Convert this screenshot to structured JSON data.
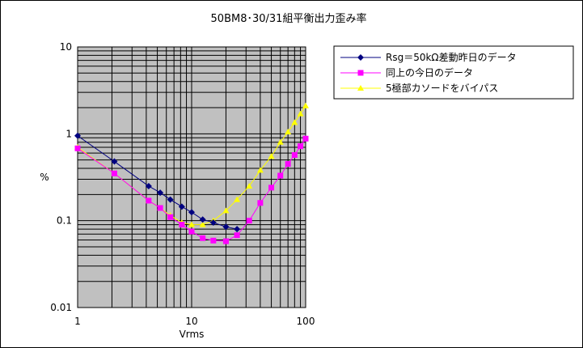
{
  "chart_data": {
    "type": "line",
    "title": "50BM8･30/31組平衡出力歪み率",
    "xlabel": "Vrms",
    "ylabel": "%",
    "x_scale": "log",
    "y_scale": "log",
    "xlim": [
      1,
      100
    ],
    "ylim": [
      0.01,
      10
    ],
    "x_ticks": [
      "1",
      "10",
      "100"
    ],
    "y_ticks": [
      "10",
      "1",
      "0.1",
      "0.01"
    ],
    "grid": true,
    "legend_position": "top-right outside plot",
    "plot_background": "#c0c0c0",
    "series": [
      {
        "name": "Rsg＝50kΩ差動昨日のデータ",
        "color": "#000080",
        "marker": "diamond",
        "x": [
          1,
          2.1,
          4.2,
          5.3,
          6.5,
          8.2,
          10,
          12.5,
          15.5,
          20,
          25
        ],
        "y": [
          0.95,
          0.48,
          0.25,
          0.21,
          0.175,
          0.145,
          0.125,
          0.103,
          0.095,
          0.085,
          0.08
        ]
      },
      {
        "name": "同上の今日のデータ",
        "color": "#ff00ff",
        "marker": "square",
        "x": [
          1,
          2.1,
          4.2,
          5.3,
          6.5,
          8.2,
          10,
          12.5,
          15.5,
          20,
          25,
          32,
          40,
          50,
          60,
          70,
          80,
          90,
          100
        ],
        "y": [
          0.68,
          0.35,
          0.17,
          0.14,
          0.11,
          0.09,
          0.075,
          0.063,
          0.059,
          0.058,
          0.068,
          0.1,
          0.16,
          0.24,
          0.33,
          0.45,
          0.57,
          0.72,
          0.88
        ]
      },
      {
        "name": "5極部カソードをバイパス",
        "color": "#ffff00",
        "marker": "triangle",
        "x": [
          1,
          2.1,
          4.2,
          5.3,
          6.5,
          8.2,
          10,
          12.5,
          15.5,
          20,
          25,
          32,
          40,
          50,
          60,
          70,
          80,
          90,
          100
        ],
        "y": [
          0.7,
          0.35,
          0.17,
          0.14,
          0.115,
          0.095,
          0.09,
          0.09,
          0.1,
          0.13,
          0.175,
          0.25,
          0.38,
          0.55,
          0.8,
          1.05,
          1.35,
          1.7,
          2.1
        ]
      }
    ]
  }
}
